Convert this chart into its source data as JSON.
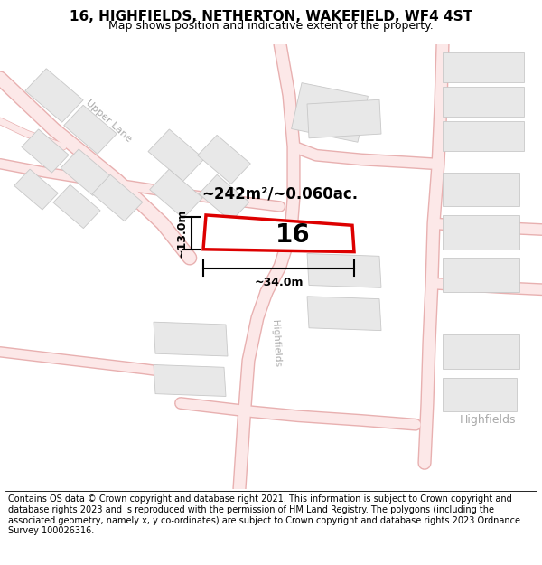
{
  "title_line1": "16, HIGHFIELDS, NETHERTON, WAKEFIELD, WF4 4ST",
  "title_line2": "Map shows position and indicative extent of the property.",
  "footer_text": "Contains OS data © Crown copyright and database right 2021. This information is subject to Crown copyright and database rights 2023 and is reproduced with the permission of HM Land Registry. The polygons (including the associated geometry, namely x, y co-ordinates) are subject to Crown copyright and database rights 2023 Ordnance Survey 100026316.",
  "area_label": "~242m²/~0.060ac.",
  "number_label": "16",
  "dim_width": "~34.0m",
  "dim_height": "~13.0m",
  "map_bg": "#f8f8f8",
  "road_color": "#fce8e8",
  "road_edge": "#e8b0b0",
  "building_fill": "#e8e8e8",
  "building_edge": "#c8c8c8",
  "highlight_color": "#dd0000",
  "street_label_color": "#aaaaaa",
  "title_fontsize": 11,
  "subtitle_fontsize": 9,
  "footer_fontsize": 7.0
}
